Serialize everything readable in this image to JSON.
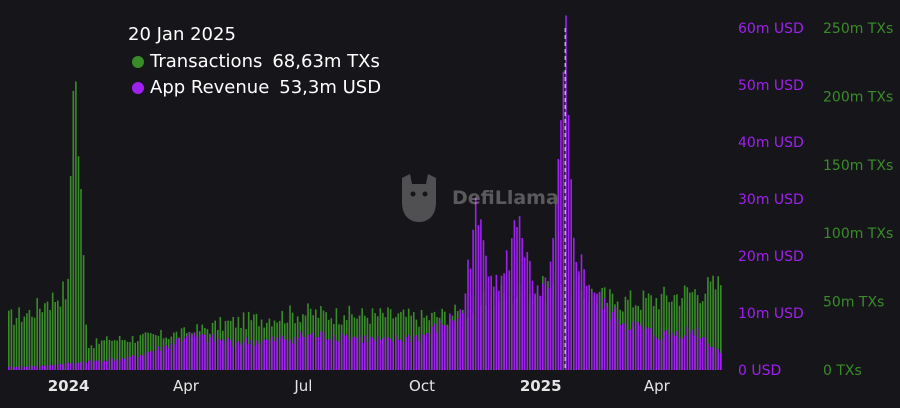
{
  "tooltip": {
    "date": "20 Jan 2025",
    "rows": [
      {
        "label": "Transactions",
        "value": "68,63m TXs",
        "color": "#3a8c2a"
      },
      {
        "label": "App Revenue",
        "value": "53,3m USD",
        "color": "#a020f0"
      }
    ]
  },
  "watermark": "DefiLlama",
  "colors": {
    "background": "#16161a",
    "transactions": "#3a8c2a",
    "revenue": "#a020f0",
    "axis_usd": "#a020f0",
    "axis_txs": "#3a8c2a"
  },
  "chart_data": {
    "type": "bar",
    "x_ticks": [
      "2024",
      "Apr",
      "Jul",
      "Oct",
      "2025",
      "Apr"
    ],
    "x_range": [
      "2023-11-15",
      "2025-05-20"
    ],
    "highlight_date": "2025-01-20",
    "series": [
      {
        "name": "Transactions",
        "axis": "right",
        "unit": "m TXs",
        "ylim": [
          0,
          250
        ],
        "y_ticks": [
          "0 TXs",
          "50m TXs",
          "100m TXs",
          "150m TXs",
          "200m TXs",
          "250m TXs"
        ],
        "points": [
          [
            "2023-11-15",
            38
          ],
          [
            "2023-12-01",
            42
          ],
          [
            "2023-12-15",
            50
          ],
          [
            "2024-01-01",
            60
          ],
          [
            "2024-01-03",
            232
          ],
          [
            "2024-01-05",
            228
          ],
          [
            "2024-01-15",
            18
          ],
          [
            "2024-02-01",
            22
          ],
          [
            "2024-03-01",
            24
          ],
          [
            "2024-04-01",
            27
          ],
          [
            "2024-05-01",
            34
          ],
          [
            "2024-06-01",
            38
          ],
          [
            "2024-07-01",
            42
          ],
          [
            "2024-08-01",
            40
          ],
          [
            "2024-09-01",
            40
          ],
          [
            "2024-10-01",
            38
          ],
          [
            "2024-11-01",
            42
          ],
          [
            "2024-12-01",
            55
          ],
          [
            "2025-01-01",
            58
          ],
          [
            "2025-01-20",
            68.63
          ],
          [
            "2025-02-01",
            58
          ],
          [
            "2025-03-01",
            50
          ],
          [
            "2025-04-01",
            52
          ],
          [
            "2025-05-01",
            58
          ],
          [
            "2025-05-20",
            62
          ]
        ]
      },
      {
        "name": "App Revenue",
        "axis": "left",
        "unit": "m USD",
        "ylim": [
          0,
          60
        ],
        "y_ticks": [
          "0 USD",
          "10m USD",
          "20m USD",
          "30m USD",
          "40m USD",
          "50m USD",
          "60m USD"
        ],
        "points": [
          [
            "2023-11-15",
            0.5
          ],
          [
            "2023-12-15",
            0.8
          ],
          [
            "2024-01-15",
            1.5
          ],
          [
            "2024-02-15",
            2
          ],
          [
            "2024-03-15",
            4
          ],
          [
            "2024-04-01",
            6
          ],
          [
            "2024-05-01",
            5
          ],
          [
            "2024-06-01",
            5
          ],
          [
            "2024-07-01",
            6
          ],
          [
            "2024-08-01",
            6
          ],
          [
            "2024-09-01",
            5
          ],
          [
            "2024-10-01",
            6
          ],
          [
            "2024-11-01",
            10
          ],
          [
            "2024-11-10",
            27
          ],
          [
            "2024-11-20",
            20
          ],
          [
            "2024-12-01",
            15
          ],
          [
            "2024-12-15",
            27
          ],
          [
            "2024-12-25",
            14
          ],
          [
            "2025-01-01",
            12
          ],
          [
            "2025-01-10",
            20
          ],
          [
            "2025-01-20",
            53.3
          ],
          [
            "2025-01-25",
            24
          ],
          [
            "2025-02-01",
            18
          ],
          [
            "2025-02-15",
            12
          ],
          [
            "2025-03-01",
            9
          ],
          [
            "2025-04-01",
            6
          ],
          [
            "2025-05-01",
            7
          ],
          [
            "2025-05-20",
            3
          ]
        ]
      }
    ]
  }
}
